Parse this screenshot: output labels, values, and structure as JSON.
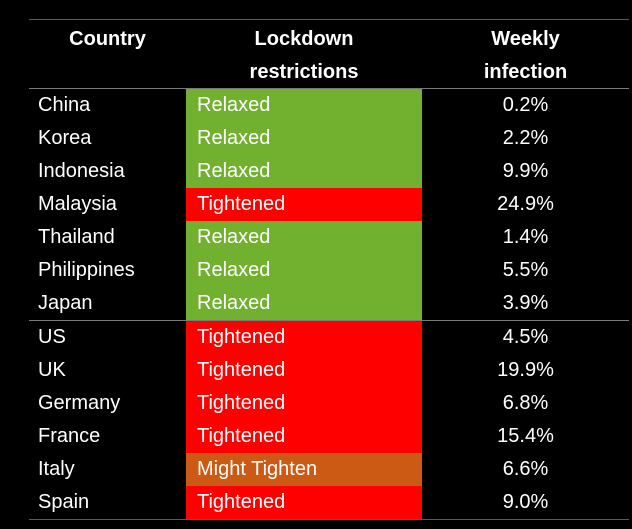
{
  "table": {
    "headers": {
      "country": "Country",
      "restrictions_line1": "Lockdown",
      "restrictions_line2": "restrictions",
      "infection_line1": "Weekly",
      "infection_line2": "infection"
    },
    "status_colors": {
      "Relaxed": "#72b030",
      "Tightened": "#ff0000",
      "Might Tighten": "#cc5a15"
    },
    "groups": [
      {
        "rows": [
          {
            "country": "China",
            "restriction": "Relaxed",
            "infection": "0.2%"
          },
          {
            "country": "Korea",
            "restriction": "Relaxed",
            "infection": "2.2%"
          },
          {
            "country": "Indonesia",
            "restriction": "Relaxed",
            "infection": "9.9%"
          },
          {
            "country": "Malaysia",
            "restriction": "Tightened",
            "infection": "24.9%"
          },
          {
            "country": "Thailand",
            "restriction": "Relaxed",
            "infection": "1.4%"
          },
          {
            "country": "Philippines",
            "restriction": "Relaxed",
            "infection": "5.5%"
          },
          {
            "country": "Japan",
            "restriction": "Relaxed",
            "infection": "3.9%"
          }
        ]
      },
      {
        "rows": [
          {
            "country": "US",
            "restriction": "Tightened",
            "infection": "4.5%"
          },
          {
            "country": "UK",
            "restriction": "Tightened",
            "infection": "19.9%"
          },
          {
            "country": "Germany",
            "restriction": "Tightened",
            "infection": "6.8%"
          },
          {
            "country": "France",
            "restriction": "Tightened",
            "infection": "15.4%"
          },
          {
            "country": "Italy",
            "restriction": "Might Tighten",
            "infection": "6.6%"
          },
          {
            "country": "Spain",
            "restriction": "Tightened",
            "infection": "9.0%"
          }
        ]
      }
    ]
  }
}
